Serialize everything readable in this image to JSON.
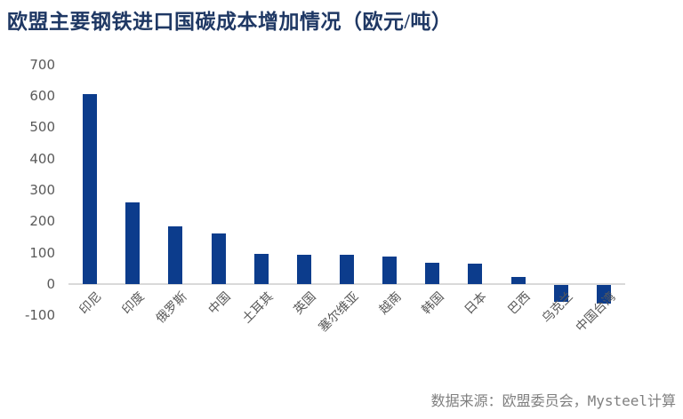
{
  "title": "欧盟主要钢铁进口国碳成本增加情况（欧元/吨）",
  "source": "数据来源：欧盟委员会，Mysteel计算",
  "colors": {
    "bar": "#0C3C8C",
    "title": "#1F3864",
    "tick_text": "#595959",
    "axis_line": "#D9D9D9",
    "source_text": "#7F7F7F"
  },
  "chart_data": {
    "type": "bar",
    "title": "欧盟主要钢铁进口国碳成本增加情况（欧元/吨）",
    "unit": "欧元/吨",
    "categories": [
      "印尼",
      "印度",
      "俄罗斯",
      "中国",
      "土耳其",
      "英国",
      "塞尔维亚",
      "越南",
      "韩国",
      "日本",
      "巴西",
      "乌克兰",
      "中国台湾"
    ],
    "values": [
      605,
      260,
      184,
      161,
      96,
      94,
      93,
      88,
      67,
      65,
      22,
      -55,
      -60
    ],
    "ylim": [
      -100,
      700
    ],
    "yticks": [
      700,
      600,
      500,
      400,
      300,
      200,
      100,
      0,
      -100
    ],
    "grid": false,
    "legend": false,
    "bar_color": "#0C3C8C"
  }
}
